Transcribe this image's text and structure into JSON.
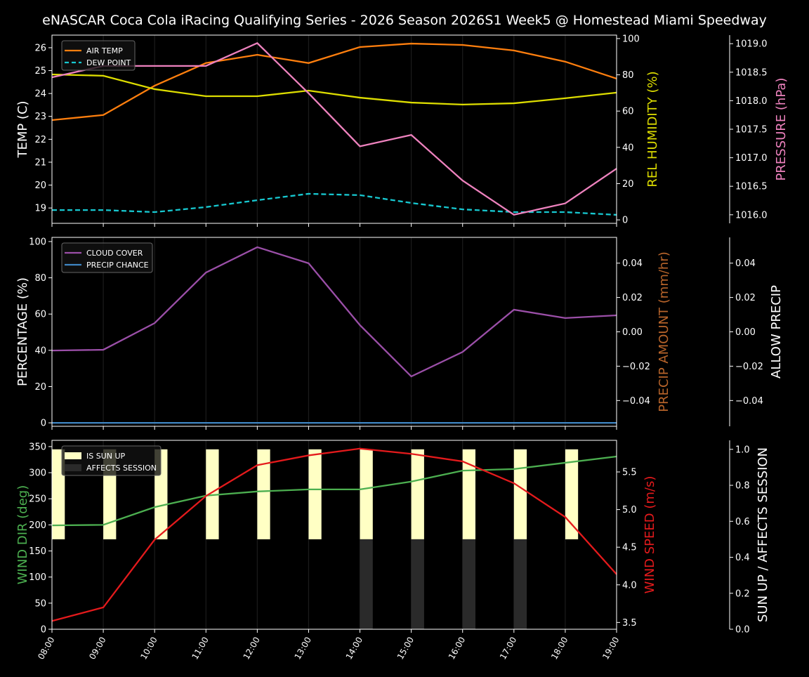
{
  "title": "eNASCAR Coca Cola iRacing Qualifying Series - 2026 Season 2026S1 Week5 @ Homestead Miami Speedway",
  "chart_data": [
    {
      "type": "line",
      "x": [
        "08:00",
        "09:00",
        "10:00",
        "11:00",
        "12:00",
        "13:00",
        "14:00",
        "15:00",
        "16:00",
        "17:00",
        "18:00",
        "19:00"
      ],
      "legend": "upper left",
      "grid": "vertical",
      "axes": {
        "left": {
          "label": "TEMP (C)",
          "ylim": [
            18.33,
            26.55
          ],
          "ticks": [
            19,
            20,
            21,
            22,
            23,
            24,
            25,
            26
          ],
          "tick_labels": [
            "19",
            "20",
            "21",
            "22",
            "23",
            "24",
            "25",
            "26"
          ],
          "color": "#ffffff"
        },
        "right": {
          "label": "REL HUMIDITY (%)",
          "ylim": [
            -1.9,
            101.9
          ],
          "ticks": [
            0,
            20,
            40,
            60,
            80,
            100
          ],
          "tick_labels": [
            "0",
            "20",
            "40",
            "60",
            "80",
            "100"
          ],
          "color": "#dddd00"
        },
        "right2": {
          "label": "PRESSURE (hPa)",
          "ylim": [
            1015.85,
            1019.15
          ],
          "ticks": [
            1016.0,
            1016.5,
            1017.0,
            1017.5,
            1018.0,
            1018.5,
            1019.0
          ],
          "tick_labels": [
            "1016.0",
            "1016.5",
            "1017.0",
            "1017.5",
            "1018.0",
            "1018.5",
            "1019.0"
          ],
          "color": "#ee82be"
        }
      },
      "series": [
        {
          "name": "AIR TEMP",
          "axis": "left",
          "color": "#ff7f0e",
          "dash": false,
          "legend": true,
          "values": [
            22.84,
            23.06,
            24.34,
            25.33,
            25.69,
            25.33,
            26.03,
            26.18,
            26.12,
            25.88,
            25.39,
            24.65
          ]
        },
        {
          "name": "DEW POINT",
          "axis": "left",
          "color": "#17c8d0",
          "dash": true,
          "legend": true,
          "values": [
            18.91,
            18.91,
            18.82,
            19.04,
            19.34,
            19.62,
            19.56,
            19.22,
            18.94,
            18.82,
            18.82,
            18.7
          ]
        },
        {
          "axis": "right",
          "color": "#dddd00",
          "dash": false,
          "legend": false,
          "values": [
            80.2,
            79.5,
            72.1,
            68.2,
            68.2,
            71.3,
            67.4,
            64.7,
            63.6,
            64.3,
            67.1,
            70.2
          ]
        },
        {
          "axis": "right2",
          "color": "#ee82be",
          "dash": false,
          "legend": false,
          "values": [
            1018.41,
            1018.61,
            1018.61,
            1018.61,
            1019.01,
            1018.13,
            1017.2,
            1017.4,
            1016.6,
            1016.0,
            1016.2,
            1016.81
          ]
        }
      ]
    },
    {
      "type": "line",
      "x": [
        "08:00",
        "09:00",
        "10:00",
        "11:00",
        "12:00",
        "13:00",
        "14:00",
        "15:00",
        "16:00",
        "17:00",
        "18:00",
        "19:00"
      ],
      "legend": "upper left",
      "grid": "vertical",
      "axes": {
        "left": {
          "label": "PERCENTAGE (%)",
          "ylim": [
            -1.9,
            102.3
          ],
          "ticks": [
            0,
            20,
            40,
            60,
            80,
            100
          ],
          "tick_labels": [
            "0",
            "20",
            "40",
            "60",
            "80",
            "100"
          ],
          "color": "#ffffff"
        },
        "right": {
          "label": "PRECIP AMOUNT (mm/hr)",
          "ylim": [
            -0.055,
            0.055
          ],
          "ticks": [
            -0.04,
            -0.02,
            0,
            0.02,
            0.04
          ],
          "tick_labels": [
            "−0.04",
            "−0.02",
            "0.00",
            "0.02",
            "0.04"
          ],
          "color": "#b8642a"
        },
        "right2": {
          "label": "ALLOW PRECIP",
          "ylim": [
            -0.055,
            0.055
          ],
          "ticks": [
            -0.04,
            -0.02,
            0,
            0.02,
            0.04
          ],
          "tick_labels": [
            "−0.04",
            "−0.02",
            "0.00",
            "0.02",
            "0.04"
          ],
          "color": "#ffffff"
        }
      },
      "series": [
        {
          "name": "CLOUD COVER",
          "axis": "left",
          "color": "#9b4fa8",
          "dash": false,
          "legend": true,
          "values": [
            39.9,
            40.3,
            55.0,
            82.9,
            96.9,
            88.0,
            53.9,
            25.6,
            39.1,
            62.4,
            57.8,
            59.3
          ]
        },
        {
          "name": "PRECIP CHANCE",
          "axis": "left",
          "color": "#3f86c4",
          "dash": false,
          "legend": true,
          "values": [
            0,
            0,
            0,
            0,
            0,
            0,
            0,
            0,
            0,
            0,
            0,
            0
          ]
        }
      ]
    },
    {
      "type": "line",
      "x": [
        "08:00",
        "09:00",
        "10:00",
        "11:00",
        "12:00",
        "13:00",
        "14:00",
        "15:00",
        "16:00",
        "17:00",
        "18:00",
        "19:00"
      ],
      "legend": "upper left",
      "grid": "vertical",
      "axes": {
        "left": {
          "label": "WIND DIR (deg)",
          "ylim": [
            0,
            362
          ],
          "ticks": [
            0,
            50,
            100,
            150,
            200,
            250,
            300,
            350
          ],
          "tick_labels": [
            "0",
            "50",
            "100",
            "150",
            "200",
            "250",
            "300",
            "350"
          ],
          "color": "#4caf50"
        },
        "right": {
          "label": "WIND SPEED (m/s)",
          "ylim": [
            3.41,
            5.92
          ],
          "ticks": [
            3.5,
            4.0,
            4.5,
            5.0,
            5.5
          ],
          "tick_labels": [
            "3.5",
            "4.0",
            "4.5",
            "5.0",
            "5.5"
          ],
          "color": "#e41a1c"
        },
        "right2": {
          "label": "SUN UP / AFFECTS SESSION",
          "ylim": [
            0,
            1.05
          ],
          "ticks": [
            0,
            0.2,
            0.4,
            0.6,
            0.8,
            1.0
          ],
          "tick_labels": [
            "0.0",
            "0.2",
            "0.4",
            "0.6",
            "0.8",
            "1.0"
          ],
          "color": "#ffffff"
        }
      },
      "bars": [
        {
          "name": "IS SUN UP",
          "axis": "right2",
          "color": "#ffffc4",
          "base": 0.5,
          "height": 0.5,
          "values": [
            1,
            1,
            1,
            1,
            1,
            1,
            1,
            1,
            1,
            1,
            1,
            0
          ]
        },
        {
          "name": "AFFECTS SESSION",
          "axis": "right2",
          "color": "#2a2a2a",
          "base": 0,
          "height": 0.5,
          "values": [
            0,
            0,
            0,
            0,
            0,
            0,
            1,
            1,
            1,
            1,
            0,
            0
          ]
        }
      ],
      "series": [
        {
          "axis": "left",
          "color": "#4caf50",
          "dash": false,
          "legend": false,
          "values": [
            199,
            200,
            234,
            256,
            264,
            268,
            268,
            283,
            304,
            307,
            319,
            331
          ]
        },
        {
          "axis": "right",
          "color": "#e41a1c",
          "dash": false,
          "legend": false,
          "values": [
            3.52,
            3.7,
            4.6,
            5.18,
            5.59,
            5.72,
            5.81,
            5.74,
            5.64,
            5.35,
            4.9,
            4.14
          ]
        }
      ]
    }
  ]
}
